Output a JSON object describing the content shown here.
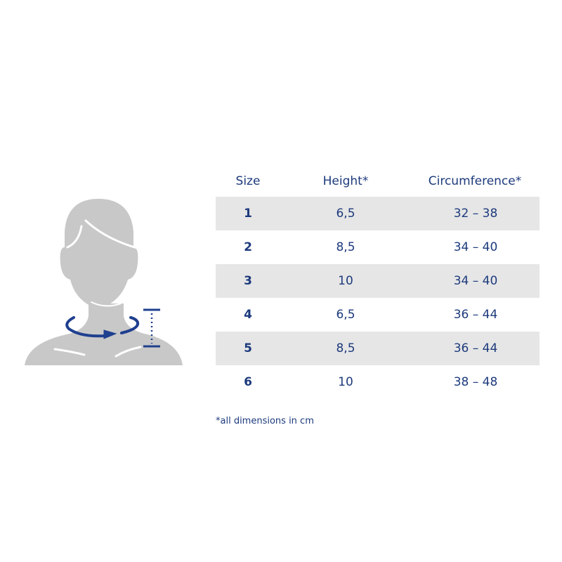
{
  "table": {
    "headers": [
      "Size",
      "Height*",
      "Circumference*"
    ],
    "rows": [
      {
        "size": "1",
        "height": "6,5",
        "circumference": "32 – 38"
      },
      {
        "size": "2",
        "height": "8,5",
        "circumference": "34 – 40"
      },
      {
        "size": "3",
        "height": "10",
        "circumference": "34 – 40"
      },
      {
        "size": "4",
        "height": "6,5",
        "circumference": "36 – 44"
      },
      {
        "size": "5",
        "height": "8,5",
        "circumference": "36 – 44"
      },
      {
        "size": "6",
        "height": "10",
        "circumference": "38 – 48"
      }
    ]
  },
  "footnote": "*all dimensions in cm",
  "colors": {
    "text": "#1d3a7c",
    "row_shade": "#e6e6e6",
    "figure": "#c8c8c8",
    "arrow": "#1f3f8f"
  }
}
